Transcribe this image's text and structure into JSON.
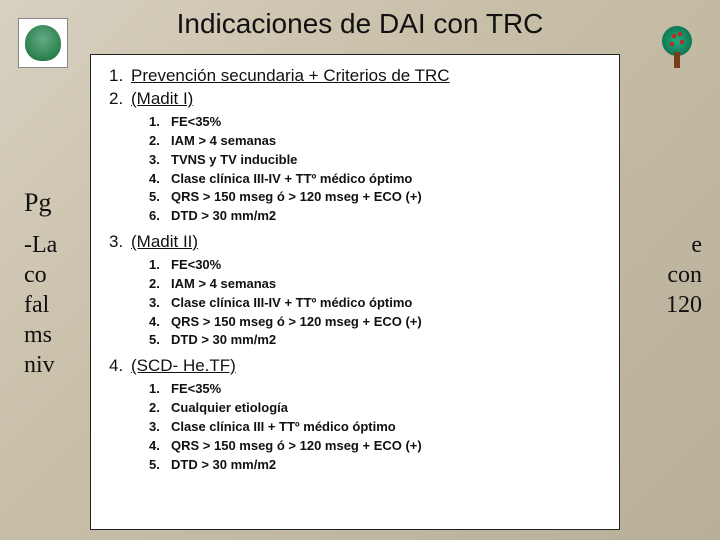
{
  "title": "Indicaciones de DAI con TRC",
  "background": {
    "pg": "Pg",
    "line1a": "-La",
    "line1b": "e",
    "line2a": "co",
    "line2b": "con",
    "line3a": "fal",
    "line3b": "120",
    "line4": "ms",
    "line5": "niv"
  },
  "sections": [
    {
      "num": "1.",
      "title": "Prevención secundaria + Criterios de TRC",
      "items": []
    },
    {
      "num": "2.",
      "title": "(Madit I)",
      "items": [
        {
          "n": "1.",
          "t": "FE<35%"
        },
        {
          "n": "2.",
          "t": "IAM > 4 semanas"
        },
        {
          "n": "3.",
          "t": "TVNS y TV inducible"
        },
        {
          "n": "4.",
          "t": "Clase clínica III-IV + TTº médico óptimo"
        },
        {
          "n": "5.",
          "t": "QRS > 150 mseg ó > 120 mseg + ECO (+)"
        },
        {
          "n": "6.",
          "t": "DTD > 30 mm/m2"
        }
      ]
    },
    {
      "num": "3.",
      "title": "(Madit II)",
      "items": [
        {
          "n": "1.",
          "t": "FE<30%"
        },
        {
          "n": "2.",
          "t": "IAM > 4 semanas"
        },
        {
          "n": "3.",
          "t": "Clase clínica III-IV + TTº médico óptimo"
        },
        {
          "n": "4.",
          "t": "QRS > 150 mseg ó > 120 mseg + ECO (+)"
        },
        {
          "n": "5.",
          "t": "DTD > 30 mm/m2"
        }
      ]
    },
    {
      "num": "4.",
      "title": "(SCD- He.TF)",
      "items": [
        {
          "n": "1.",
          "t": "FE<35%"
        },
        {
          "n": "2.",
          "t": "Cualquier etiología"
        },
        {
          "n": "3.",
          "t": "Clase clínica III + TTº médico óptimo"
        },
        {
          "n": "4.",
          "t": "QRS > 150 mseg ó > 120 mseg + ECO (+)"
        },
        {
          "n": "5.",
          "t": "DTD > 30 mm/m2"
        }
      ]
    }
  ]
}
